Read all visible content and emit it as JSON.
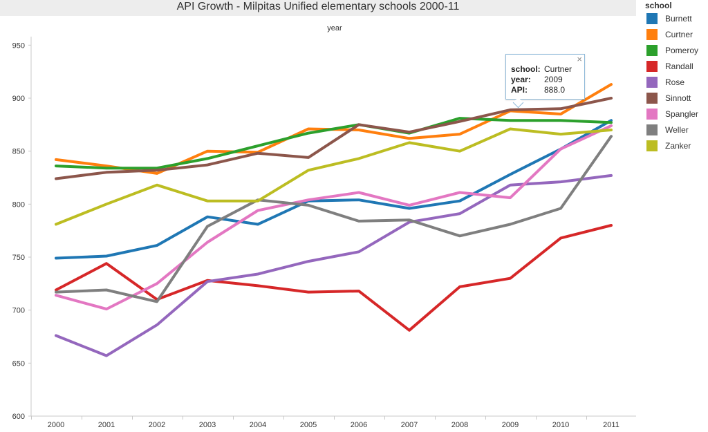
{
  "chart_data": {
    "type": "line",
    "title": "API Growth - Milpitas Unified elementary schools 2000-11",
    "xlabel": "year",
    "ylabel": "",
    "x": [
      "2000",
      "2001",
      "2002",
      "2003",
      "2004",
      "2005",
      "2006",
      "2007",
      "2008",
      "2009",
      "2010",
      "2011"
    ],
    "ylim": [
      600,
      960
    ],
    "yticks": [
      600,
      650,
      700,
      750,
      800,
      850,
      900,
      950
    ],
    "grid": false,
    "legend_position": "right",
    "legend_title": "school",
    "series": [
      {
        "name": "Burnett",
        "color": "#1f77b4",
        "values": [
          749,
          751,
          761,
          788,
          781,
          803,
          804,
          796,
          803,
          828,
          852,
          879
        ]
      },
      {
        "name": "Curtner",
        "color": "#ff7f0e",
        "values": [
          842,
          836,
          829,
          850,
          849,
          871,
          870,
          862,
          866,
          888,
          885,
          913
        ]
      },
      {
        "name": "Pomeroy",
        "color": "#2ca02c",
        "values": [
          836,
          834,
          834,
          843,
          855,
          867,
          875,
          867,
          881,
          879,
          879,
          877
        ]
      },
      {
        "name": "Randall",
        "color": "#d62728",
        "values": [
          719,
          744,
          710,
          728,
          723,
          717,
          718,
          681,
          722,
          730,
          768,
          780
        ]
      },
      {
        "name": "Rose",
        "color": "#9467bd",
        "values": [
          676,
          657,
          686,
          727,
          734,
          746,
          755,
          783,
          791,
          818,
          821,
          827
        ]
      },
      {
        "name": "Sinnott",
        "color": "#8c564b",
        "values": [
          824,
          830,
          832,
          837,
          848,
          844,
          875,
          868,
          878,
          889,
          890,
          900
        ]
      },
      {
        "name": "Spangler",
        "color": "#e377c2",
        "values": [
          714,
          701,
          725,
          764,
          794,
          804,
          811,
          799,
          811,
          806,
          852,
          874
        ]
      },
      {
        "name": "Weller",
        "color": "#7f7f7f",
        "values": [
          717,
          719,
          708,
          779,
          804,
          799,
          784,
          785,
          770,
          781,
          796,
          864
        ]
      },
      {
        "name": "Zanker",
        "color": "#bcbd22",
        "values": [
          781,
          800,
          818,
          803,
          803,
          832,
          843,
          858,
          850,
          871,
          866,
          870
        ]
      }
    ]
  },
  "tooltip": {
    "school_label": "school:",
    "school_value": "Curtner",
    "year_label": "year:",
    "year_value": "2009",
    "api_label": "API:",
    "api_value": "888.0",
    "close_icon": "×"
  }
}
